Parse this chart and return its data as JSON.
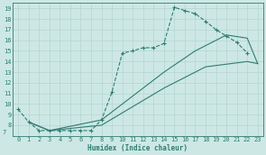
{
  "bg_color": "#cde8e4",
  "grid_color": "#b8d8d4",
  "line_color": "#2e7d72",
  "xlabel": "Humidex (Indice chaleur)",
  "xlim": [
    -0.5,
    23.5
  ],
  "ylim": [
    7,
    19.5
  ],
  "xticks": [
    0,
    1,
    2,
    3,
    4,
    5,
    6,
    7,
    8,
    9,
    10,
    11,
    12,
    13,
    14,
    15,
    16,
    17,
    18,
    19,
    20,
    21,
    22,
    23
  ],
  "yticks": [
    8,
    9,
    10,
    11,
    12,
    13,
    14,
    15,
    16,
    17,
    18,
    19
  ],
  "ytick_labels": [
    "8",
    "9",
    "10",
    "11",
    "12",
    "13",
    "14",
    "15",
    "16",
    "17",
    "18",
    "19"
  ],
  "line1_x": [
    0,
    1,
    2,
    3,
    4,
    5,
    6,
    7,
    8,
    9,
    10,
    11,
    12,
    13,
    14,
    15,
    16,
    17,
    18,
    19,
    20,
    21,
    22
  ],
  "line1_y": [
    9.5,
    8.3,
    7.5,
    7.5,
    7.5,
    7.5,
    7.5,
    7.5,
    8.5,
    11.1,
    14.8,
    15.0,
    15.3,
    15.3,
    15.7,
    19.1,
    18.8,
    18.5,
    17.8,
    17.0,
    16.4,
    15.8,
    14.8
  ],
  "line2_x": [
    1,
    3,
    8,
    14,
    17,
    20,
    22,
    23
  ],
  "line2_y": [
    8.3,
    7.5,
    8.5,
    13.0,
    15.0,
    16.5,
    16.2,
    13.8
  ],
  "line3_x": [
    1,
    3,
    8,
    14,
    18,
    22,
    23
  ],
  "line3_y": [
    8.3,
    7.5,
    8.0,
    11.5,
    13.5,
    14.0,
    13.8
  ]
}
